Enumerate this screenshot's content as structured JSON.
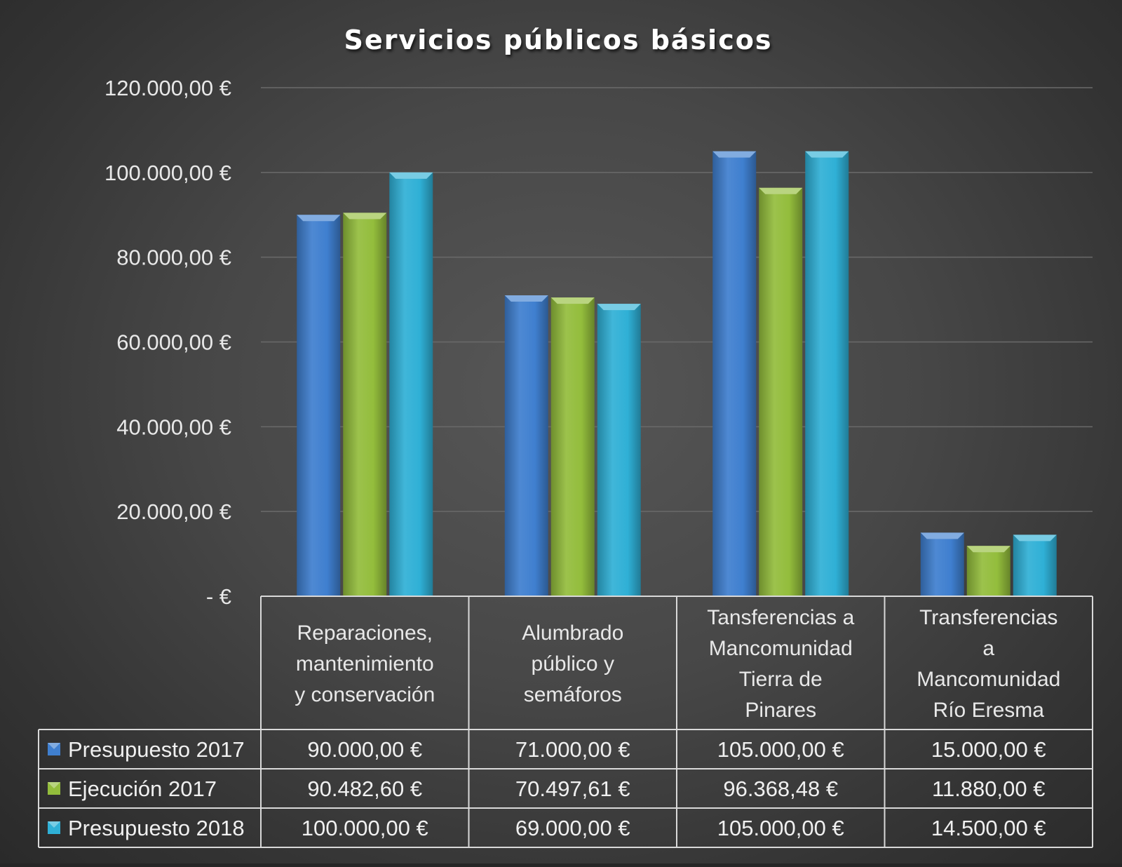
{
  "chart_data": {
    "type": "bar",
    "title": "Servicios públicos básicos",
    "categories": [
      [
        "Reparaciones,",
        "mantenimiento",
        "y conservación"
      ],
      [
        "Alumbrado",
        "público y",
        "semáforos"
      ],
      [
        "Tansferencias a",
        "Mancomunidad",
        "Tierra de",
        "Pinares"
      ],
      [
        "Transferencias",
        "a",
        "Mancomunidad",
        "Río Eresma"
      ]
    ],
    "series": [
      {
        "name": "Presupuesto 2017",
        "color": "#3f7fcf",
        "values": [
          90000,
          71000,
          105000,
          15000
        ],
        "labels": [
          "90.000,00 €",
          "71.000,00 €",
          "105.000,00 €",
          "15.000,00 €"
        ]
      },
      {
        "name": "Ejecución 2017",
        "color": "#93bd3c",
        "values": [
          90482.6,
          70497.61,
          96368.48,
          11880
        ],
        "labels": [
          "90.482,60 €",
          "70.497,61 €",
          "96.368,48 €",
          "11.880,00 €"
        ]
      },
      {
        "name": "Presupuesto 2018",
        "color": "#2fb0d6",
        "values": [
          100000,
          69000,
          105000,
          14500
        ],
        "labels": [
          "100.000,00 €",
          "69.000,00 €",
          "105.000,00 €",
          "14.500,00 €"
        ]
      }
    ],
    "ylim": [
      0,
      120000
    ],
    "yticks": [
      0,
      20000,
      40000,
      60000,
      80000,
      100000,
      120000
    ],
    "ytick_labels": [
      "-   €",
      "20.000,00 €",
      "40.000,00 €",
      "60.000,00 €",
      "80.000,00 €",
      "100.000,00 €",
      "120.000,00 €"
    ],
    "grid": true,
    "legend": "data-table"
  }
}
